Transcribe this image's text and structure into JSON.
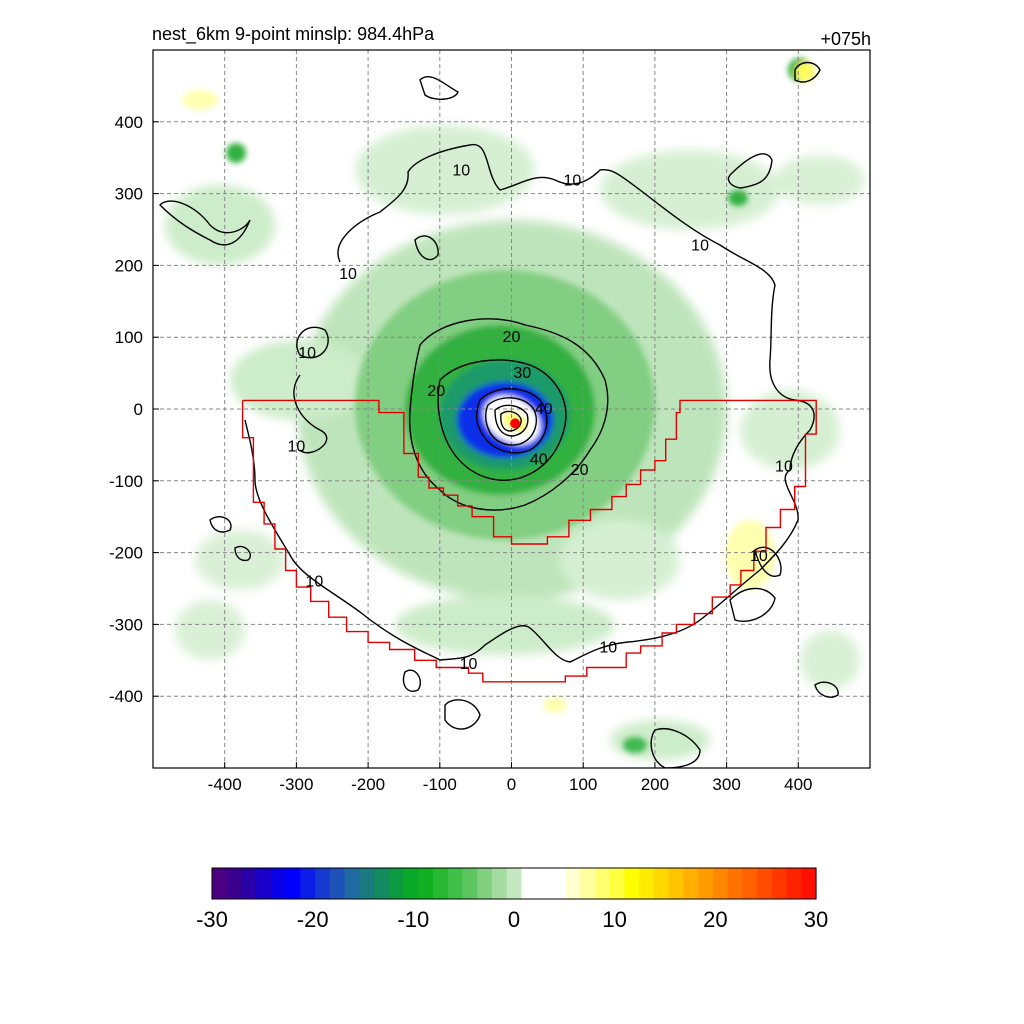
{
  "chart_data": {
    "type": "heatmap",
    "title": "nest_6km  9-point minslp: 984.4hPa",
    "forecast_hour": "+075h",
    "xlabel": "",
    "ylabel": "",
    "xlim": [
      -500,
      500
    ],
    "ylim": [
      -500,
      500
    ],
    "x_ticks": [
      -400,
      -300,
      -200,
      -100,
      0,
      100,
      200,
      300,
      400
    ],
    "y_ticks": [
      400,
      300,
      200,
      100,
      0,
      -100,
      -200,
      -300,
      -400
    ],
    "grid": true,
    "contour_label_values": [
      10,
      20,
      30,
      40
    ],
    "contour_labels": [
      {
        "text": "10",
        "x": -70,
        "y": 332
      },
      {
        "text": "10",
        "x": 85,
        "y": 318
      },
      {
        "text": "10",
        "x": 263,
        "y": 228
      },
      {
        "text": "10",
        "x": -228,
        "y": 188
      },
      {
        "text": "10",
        "x": -285,
        "y": 78
      },
      {
        "text": "10",
        "x": -300,
        "y": -52
      },
      {
        "text": "10",
        "x": 380,
        "y": -80
      },
      {
        "text": "10",
        "x": 345,
        "y": -205
      },
      {
        "text": "10",
        "x": -275,
        "y": -240
      },
      {
        "text": "10",
        "x": -60,
        "y": -355
      },
      {
        "text": "10",
        "x": 135,
        "y": -332
      },
      {
        "text": "20",
        "x": 0,
        "y": 100
      },
      {
        "text": "20",
        "x": -105,
        "y": 25
      },
      {
        "text": "20",
        "x": 95,
        "y": -85
      },
      {
        "text": "30",
        "x": 15,
        "y": 50
      },
      {
        "text": "40",
        "x": 38,
        "y": -70
      },
      {
        "text": "40",
        "x": 45,
        "y": 0
      }
    ],
    "center": {
      "x": 5,
      "y": -20
    },
    "colorbar": {
      "ticks": [
        -30,
        -20,
        -10,
        0,
        10,
        20,
        30
      ],
      "range": [
        -30,
        30
      ],
      "colors": [
        "#4b0082",
        "#3a008e",
        "#2a00a8",
        "#1a00c8",
        "#0a00e8",
        "#0000ff",
        "#0a1ee8",
        "#153ad0",
        "#1f52b8",
        "#1f6aa0",
        "#1a7a80",
        "#138a60",
        "#0c9a40",
        "#08a828",
        "#10b020",
        "#26b830",
        "#40c048",
        "#5ec660",
        "#80d080",
        "#a4dca0",
        "#c4e8c0",
        "#ffffff",
        "#ffffff",
        "#ffffff",
        "#ffffd0",
        "#ffffa0",
        "#ffff70",
        "#ffff40",
        "#ffff00",
        "#ffec00",
        "#ffd800",
        "#ffc400",
        "#ffb000",
        "#ff9c00",
        "#ff8800",
        "#ff7400",
        "#ff6000",
        "#ff4c00",
        "#ff3800",
        "#ff2400",
        "#ff1000"
      ]
    },
    "red_boundary": [
      [
        -375,
        12
      ],
      [
        -185,
        12
      ],
      [
        -185,
        -5
      ],
      [
        -150,
        -5
      ],
      [
        -150,
        -62
      ],
      [
        -130,
        -62
      ],
      [
        -130,
        -95
      ],
      [
        -115,
        -95
      ],
      [
        -115,
        -110
      ],
      [
        -95,
        -110
      ],
      [
        -95,
        -120
      ],
      [
        -75,
        -120
      ],
      [
        -75,
        -135
      ],
      [
        -55,
        -135
      ],
      [
        -55,
        -150
      ],
      [
        -25,
        -150
      ],
      [
        -25,
        -178
      ],
      [
        0,
        -178
      ],
      [
        0,
        -188
      ],
      [
        50,
        -188
      ],
      [
        50,
        -178
      ],
      [
        80,
        -178
      ],
      [
        80,
        -155
      ],
      [
        110,
        -155
      ],
      [
        110,
        -140
      ],
      [
        140,
        -140
      ],
      [
        140,
        -122
      ],
      [
        160,
        -122
      ],
      [
        160,
        -105
      ],
      [
        180,
        -105
      ],
      [
        180,
        -85
      ],
      [
        200,
        -85
      ],
      [
        200,
        -72
      ],
      [
        215,
        -72
      ],
      [
        215,
        -42
      ],
      [
        230,
        -42
      ],
      [
        230,
        -5
      ],
      [
        235,
        -5
      ],
      [
        235,
        12
      ],
      [
        425,
        12
      ],
      [
        425,
        -35
      ],
      [
        410,
        -35
      ],
      [
        410,
        -108
      ],
      [
        395,
        -108
      ],
      [
        395,
        -140
      ],
      [
        375,
        -140
      ],
      [
        375,
        -165
      ],
      [
        355,
        -165
      ],
      [
        355,
        -198
      ],
      [
        338,
        -198
      ],
      [
        338,
        -225
      ],
      [
        320,
        -225
      ],
      [
        320,
        -245
      ],
      [
        305,
        -245
      ],
      [
        305,
        -262
      ],
      [
        280,
        -262
      ],
      [
        280,
        -285
      ],
      [
        255,
        -285
      ],
      [
        255,
        -300
      ],
      [
        230,
        -300
      ],
      [
        230,
        -312
      ],
      [
        210,
        -312
      ],
      [
        210,
        -330
      ],
      [
        180,
        -330
      ],
      [
        180,
        -340
      ],
      [
        160,
        -340
      ],
      [
        160,
        -360
      ],
      [
        105,
        -360
      ],
      [
        105,
        -372
      ],
      [
        75,
        -372
      ],
      [
        75,
        -380
      ],
      [
        -40,
        -380
      ],
      [
        -40,
        -368
      ],
      [
        -60,
        -368
      ],
      [
        -60,
        -360
      ],
      [
        -105,
        -360
      ],
      [
        -105,
        -350
      ],
      [
        -135,
        -350
      ],
      [
        -135,
        -335
      ],
      [
        -170,
        -335
      ],
      [
        -170,
        -325
      ],
      [
        -200,
        -325
      ],
      [
        -200,
        -310
      ],
      [
        -230,
        -310
      ],
      [
        -230,
        -290
      ],
      [
        -255,
        -290
      ],
      [
        -255,
        -268
      ],
      [
        -280,
        -268
      ],
      [
        -280,
        -248
      ],
      [
        -300,
        -248
      ],
      [
        -300,
        -225
      ],
      [
        -315,
        -225
      ],
      [
        -315,
        -195
      ],
      [
        -330,
        -195
      ],
      [
        -330,
        -160
      ],
      [
        -345,
        -160
      ],
      [
        -345,
        -130
      ],
      [
        -360,
        -130
      ],
      [
        -360,
        -100
      ],
      [
        -360,
        -40
      ],
      [
        -375,
        -40
      ],
      [
        -375,
        12
      ]
    ]
  }
}
